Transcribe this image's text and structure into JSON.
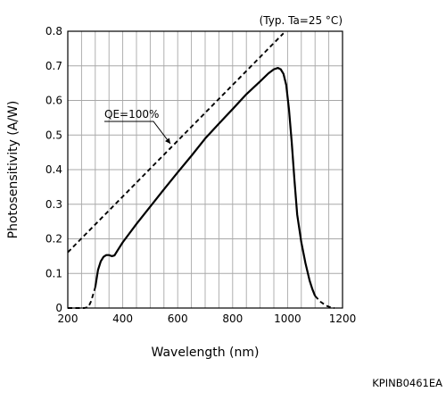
{
  "chart_data": {
    "type": "line",
    "title": "",
    "note": "(Typ. Ta=25 °C)",
    "xlabel": "Wavelength (nm)",
    "ylabel": "Photosensitivity (A/W)",
    "xlim": [
      200,
      1200
    ],
    "ylim": [
      0,
      0.8
    ],
    "xticks": [
      200,
      400,
      600,
      800,
      1000,
      1200
    ],
    "xtick_labels": [
      "200",
      "400",
      "600",
      "800",
      "1000",
      "1200"
    ],
    "yticks": [
      0,
      0.1,
      0.2,
      0.3,
      0.4,
      0.5,
      0.6,
      0.7,
      0.8
    ],
    "ytick_labels": [
      "0",
      "0.1",
      "0.2",
      "0.3",
      "0.4",
      "0.5",
      "0.6",
      "0.7",
      "0.8"
    ],
    "grid": true,
    "series": [
      {
        "name": "",
        "style": "solid",
        "color": "#000000",
        "points": [
          [
            300,
            0.06
          ],
          [
            310,
            0.11
          ],
          [
            320,
            0.135
          ],
          [
            330,
            0.148
          ],
          [
            340,
            0.153
          ],
          [
            350,
            0.153
          ],
          [
            360,
            0.15
          ],
          [
            370,
            0.152
          ],
          [
            380,
            0.165
          ],
          [
            400,
            0.19
          ],
          [
            450,
            0.243
          ],
          [
            500,
            0.293
          ],
          [
            550,
            0.343
          ],
          [
            600,
            0.392
          ],
          [
            650,
            0.44
          ],
          [
            700,
            0.49
          ],
          [
            750,
            0.533
          ],
          [
            800,
            0.575
          ],
          [
            850,
            0.618
          ],
          [
            900,
            0.655
          ],
          [
            930,
            0.678
          ],
          [
            950,
            0.69
          ],
          [
            965,
            0.694
          ],
          [
            975,
            0.69
          ],
          [
            985,
            0.677
          ],
          [
            995,
            0.645
          ],
          [
            1005,
            0.575
          ],
          [
            1015,
            0.48
          ],
          [
            1025,
            0.37
          ],
          [
            1035,
            0.27
          ],
          [
            1050,
            0.19
          ],
          [
            1065,
            0.13
          ],
          [
            1080,
            0.08
          ],
          [
            1090,
            0.055
          ],
          [
            1100,
            0.035
          ]
        ]
      },
      {
        "name": "",
        "style": "dashed",
        "color": "#000000",
        "points": [
          [
            1100,
            0.035
          ],
          [
            1120,
            0.018
          ],
          [
            1140,
            0.007
          ],
          [
            1160,
            0.001
          ],
          [
            1170,
            0.0
          ]
        ]
      },
      {
        "name": "",
        "style": "dashed",
        "color": "#000000",
        "points": [
          [
            200,
            0.0
          ],
          [
            260,
            0.0
          ],
          [
            275,
            0.003
          ],
          [
            285,
            0.02
          ],
          [
            300,
            0.06
          ]
        ]
      },
      {
        "name": "QE=100%",
        "style": "dashed",
        "color": "#000000",
        "points": [
          [
            200,
            0.161
          ],
          [
            985,
            0.794
          ]
        ]
      }
    ],
    "annotations": [
      {
        "text": "QE=100%",
        "target": [
          580,
          0.467
        ]
      }
    ]
  },
  "figure_code": "KPINB0461EA"
}
